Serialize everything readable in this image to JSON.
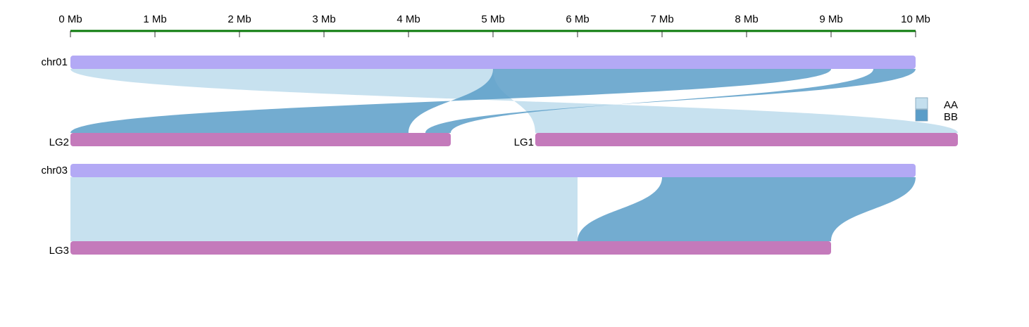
{
  "scale": {
    "unit_label": "Mb",
    "min": 0,
    "max": 10,
    "ticks": [
      {
        "value": 0,
        "label": "0 Mb"
      },
      {
        "value": 1,
        "label": "1 Mb"
      },
      {
        "value": 2,
        "label": "2 Mb"
      },
      {
        "value": 3,
        "label": "3 Mb"
      },
      {
        "value": 4,
        "label": "4 Mb"
      },
      {
        "value": 5,
        "label": "5 Mb"
      },
      {
        "value": 6,
        "label": "6 Mb"
      },
      {
        "value": 7,
        "label": "7 Mb"
      },
      {
        "value": 8,
        "label": "8 Mb"
      },
      {
        "value": 9,
        "label": "9 Mb"
      },
      {
        "value": 10,
        "label": "10 Mb"
      }
    ],
    "color": "#0a7a0a"
  },
  "colors": {
    "reference_chrom": "#b3a9f5",
    "query_chrom": "#c47abb",
    "AA": "#c4dfee",
    "BB": "#5a9dc8"
  },
  "legend": [
    {
      "key": "AA",
      "label": "AA"
    },
    {
      "key": "BB",
      "label": "BB"
    }
  ],
  "rows": [
    {
      "reference": {
        "name": "chr01",
        "start": 0,
        "end": 10
      },
      "queries": [
        {
          "name": "LG2",
          "offset": 0,
          "length": 4.5
        },
        {
          "name": "LG1",
          "offset": 5.5,
          "length": 5.0
        }
      ],
      "links": [
        {
          "type": "AA",
          "ref": [
            0,
            5
          ],
          "query": "LG1",
          "q": [
            5,
            0
          ]
        },
        {
          "type": "BB",
          "ref": [
            5,
            9
          ],
          "query": "LG2",
          "q": [
            4,
            0
          ]
        },
        {
          "type": "BB",
          "ref": [
            9.5,
            10
          ],
          "query": "LG2",
          "q": [
            4.5,
            4.2
          ]
        }
      ]
    },
    {
      "reference": {
        "name": "chr03",
        "start": 0,
        "end": 10
      },
      "queries": [
        {
          "name": "LG3",
          "offset": 0,
          "length": 9.0
        }
      ],
      "links": [
        {
          "type": "AA",
          "ref": [
            0,
            6
          ],
          "query": "LG3",
          "q": [
            0,
            6
          ]
        },
        {
          "type": "BB",
          "ref": [
            7,
            10
          ],
          "query": "LG3",
          "q": [
            6,
            9
          ]
        }
      ]
    }
  ]
}
